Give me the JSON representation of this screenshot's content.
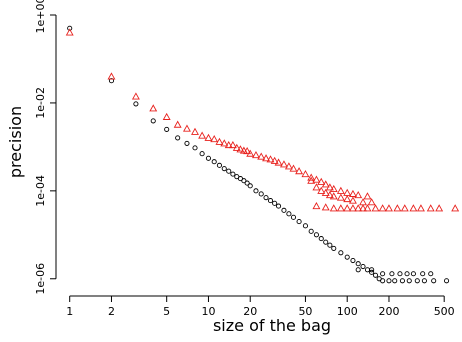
{
  "chart_data": {
    "type": "scatter",
    "title": "",
    "xlabel": "size of the bag",
    "ylabel": "precision",
    "xscale": "log",
    "yscale": "log",
    "xlim": [
      0.88,
      650
    ],
    "ylim": [
      5e-07,
      1.3
    ],
    "xticks": [
      1,
      2,
      5,
      10,
      20,
      50,
      100,
      200,
      500
    ],
    "xtick_labels": [
      "1",
      "2",
      "5",
      "10",
      "20",
      "50",
      "100",
      "200",
      "500"
    ],
    "yticks": [
      1,
      0.01,
      0.0001,
      1e-06
    ],
    "ytick_labels": [
      "1e+00",
      "1e-02",
      "1e-04",
      "1e-06"
    ],
    "grid": false,
    "legend": "none",
    "series": [
      {
        "marker": "circle",
        "color": "#000000",
        "points": [
          [
            1,
            0.5
          ],
          [
            2,
            0.032
          ],
          [
            3,
            0.0095
          ],
          [
            4,
            0.0039
          ],
          [
            5,
            0.0025
          ],
          [
            6,
            0.0016
          ],
          [
            7,
            0.0012
          ],
          [
            8,
            0.00095
          ],
          [
            9,
            0.0007
          ],
          [
            10,
            0.00055
          ],
          [
            11,
            0.00046
          ],
          [
            12,
            0.00038
          ],
          [
            13,
            0.00032
          ],
          [
            14,
            0.00028
          ],
          [
            15,
            0.00024
          ],
          [
            16,
            0.00021
          ],
          [
            17,
            0.00019
          ],
          [
            18,
            0.00017
          ],
          [
            19,
            0.00015
          ],
          [
            20,
            0.00013
          ],
          [
            22,
            0.0001
          ],
          [
            24,
            8.5e-05
          ],
          [
            26,
            7e-05
          ],
          [
            28,
            6e-05
          ],
          [
            30,
            5.2e-05
          ],
          [
            32,
            4.5e-05
          ],
          [
            35,
            3.6e-05
          ],
          [
            38,
            3e-05
          ],
          [
            41,
            2.5e-05
          ],
          [
            45,
            2e-05
          ],
          [
            50,
            1.6e-05
          ],
          [
            55,
            1.2e-05
          ],
          [
            60,
            1e-05
          ],
          [
            65,
            8.2e-06
          ],
          [
            70,
            6.8e-06
          ],
          [
            75,
            5.8e-06
          ],
          [
            80,
            4.9e-06
          ],
          [
            90,
            3.9e-06
          ],
          [
            100,
            3.1e-06
          ],
          [
            110,
            2.6e-06
          ],
          [
            120,
            2.2e-06
          ],
          [
            130,
            1.9e-06
          ],
          [
            140,
            1.6e-06
          ],
          [
            150,
            1.4e-06
          ],
          [
            160,
            1.2e-06
          ],
          [
            170,
            1e-06
          ],
          [
            180,
            9e-07
          ],
          [
            200,
            9e-07
          ],
          [
            220,
            9e-07
          ],
          [
            250,
            9e-07
          ],
          [
            280,
            9e-07
          ],
          [
            320,
            9e-07
          ],
          [
            360,
            9e-07
          ],
          [
            420,
            9e-07
          ],
          [
            520,
            9e-07
          ],
          [
            120,
            1.6e-06
          ],
          [
            150,
            1.6e-06
          ],
          [
            180,
            1.3e-06
          ],
          [
            210,
            1.3e-06
          ],
          [
            240,
            1.3e-06
          ],
          [
            270,
            1.3e-06
          ],
          [
            300,
            1.3e-06
          ],
          [
            350,
            1.3e-06
          ],
          [
            400,
            1.3e-06
          ]
        ]
      },
      {
        "marker": "triangle",
        "color": "#e8211d",
        "points": [
          [
            1,
            0.4
          ],
          [
            2,
            0.04
          ],
          [
            3,
            0.014
          ],
          [
            4,
            0.0075
          ],
          [
            5,
            0.0048
          ],
          [
            6,
            0.0032
          ],
          [
            7,
            0.0026
          ],
          [
            8,
            0.0022
          ],
          [
            9,
            0.0018
          ],
          [
            10,
            0.0016
          ],
          [
            11,
            0.0015
          ],
          [
            12,
            0.0013
          ],
          [
            13,
            0.0012
          ],
          [
            14,
            0.0011
          ],
          [
            15,
            0.0011
          ],
          [
            16,
            0.00095
          ],
          [
            17,
            0.00088
          ],
          [
            18,
            0.00082
          ],
          [
            19,
            0.0008
          ],
          [
            20,
            0.0007
          ],
          [
            22,
            0.00065
          ],
          [
            24,
            0.0006
          ],
          [
            26,
            0.00055
          ],
          [
            28,
            0.00052
          ],
          [
            30,
            0.00048
          ],
          [
            32,
            0.00044
          ],
          [
            35,
            0.0004
          ],
          [
            38,
            0.00036
          ],
          [
            41,
            0.00032
          ],
          [
            45,
            0.00028
          ],
          [
            50,
            0.00024
          ],
          [
            55,
            0.0002
          ],
          [
            60,
            0.00018
          ],
          [
            65,
            0.00016
          ],
          [
            70,
            0.00014
          ],
          [
            75,
            0.00012
          ],
          [
            80,
            0.00011
          ],
          [
            90,
            0.0001
          ],
          [
            100,
            9e-05
          ],
          [
            110,
            8.5e-05
          ],
          [
            120,
            8e-05
          ],
          [
            140,
            7.5e-05
          ],
          [
            55,
            0.00017
          ],
          [
            60,
            0.00012
          ],
          [
            65,
            0.0001
          ],
          [
            70,
            9e-05
          ],
          [
            75,
            8e-05
          ],
          [
            80,
            7.5e-05
          ],
          [
            90,
            7e-05
          ],
          [
            100,
            6.5e-05
          ],
          [
            110,
            6e-05
          ],
          [
            130,
            5.5e-05
          ],
          [
            150,
            5.5e-05
          ],
          [
            60,
            4.5e-05
          ],
          [
            70,
            4.2e-05
          ],
          [
            80,
            4e-05
          ],
          [
            90,
            4e-05
          ],
          [
            100,
            4e-05
          ],
          [
            110,
            4e-05
          ],
          [
            120,
            4e-05
          ],
          [
            130,
            4e-05
          ],
          [
            140,
            4e-05
          ],
          [
            160,
            4e-05
          ],
          [
            180,
            4e-05
          ],
          [
            200,
            4e-05
          ],
          [
            230,
            4e-05
          ],
          [
            260,
            4e-05
          ],
          [
            300,
            4e-05
          ],
          [
            340,
            4e-05
          ],
          [
            400,
            4e-05
          ],
          [
            460,
            4e-05
          ],
          [
            600,
            4e-05
          ]
        ]
      }
    ]
  }
}
